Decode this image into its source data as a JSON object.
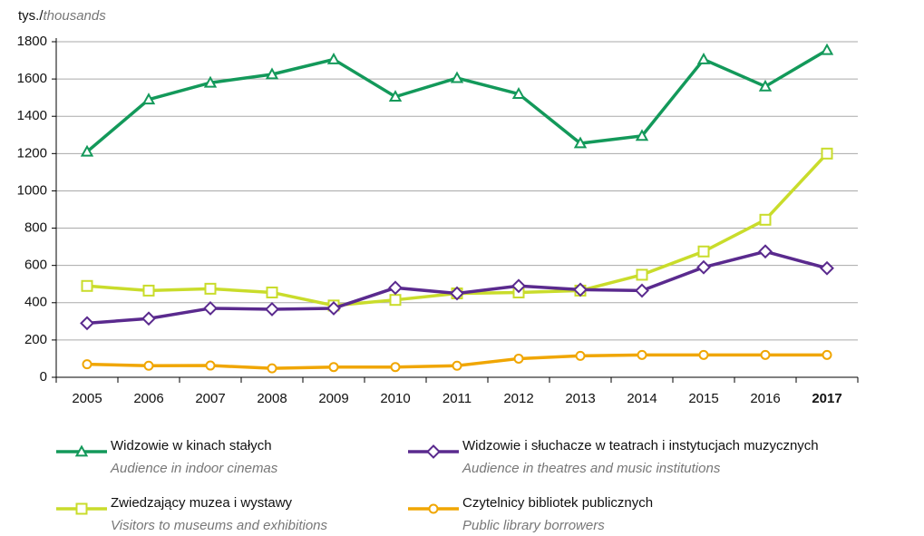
{
  "chart_data": {
    "type": "line",
    "y_label": {
      "pl": "tys./",
      "en": "thousands"
    },
    "categories": [
      "2005",
      "2006",
      "2007",
      "2008",
      "2009",
      "2010",
      "2011",
      "2012",
      "2013",
      "2014",
      "2015",
      "2016",
      "2017"
    ],
    "series": [
      {
        "name": "Widzowie w kinach stałych",
        "name_en": "Audience in indoor cinemas",
        "color": "#13995a",
        "marker": "triangle",
        "values": [
          1210,
          1490,
          1580,
          1625,
          1705,
          1505,
          1605,
          1520,
          1255,
          1295,
          1705,
          1560,
          1755
        ]
      },
      {
        "name": "Widzowie i słuchacze w teatrach i instytucjach muzycznych",
        "name_en": "Audience in theatres and music institutions",
        "color": "#5a2a8e",
        "marker": "diamond",
        "values": [
          290,
          315,
          370,
          365,
          370,
          480,
          450,
          490,
          470,
          465,
          590,
          675,
          585
        ]
      },
      {
        "name": "Zwiedzający muzea i wystawy",
        "name_en": "Visitors to museums and exhibitions",
        "color": "#c9dc2b",
        "marker": "square",
        "values": [
          490,
          465,
          475,
          455,
          385,
          415,
          450,
          455,
          465,
          550,
          675,
          845,
          1200
        ]
      },
      {
        "name": "Czytelnicy bibliotek publicznych",
        "name_en": "Public library borrowers",
        "color": "#f0a602",
        "marker": "circle",
        "values": [
          70,
          62,
          63,
          48,
          55,
          55,
          62,
          100,
          115,
          120,
          120,
          120,
          120
        ]
      }
    ],
    "ylim": [
      0,
      1800
    ],
    "yticks": [
      0,
      200,
      400,
      600,
      800,
      1000,
      1200,
      1400,
      1600,
      1800
    ],
    "grid": true
  }
}
